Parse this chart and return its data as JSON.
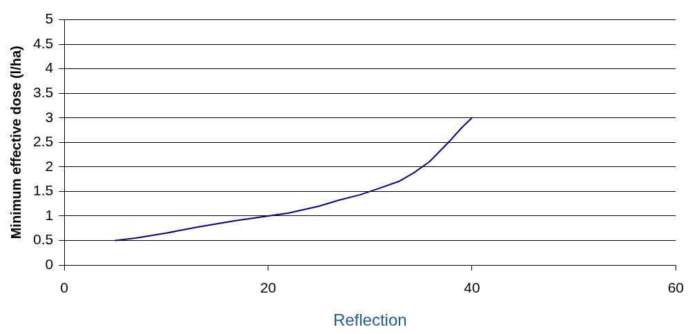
{
  "chart_data": {
    "type": "line",
    "xlabel": "Reflection",
    "ylabel": "Minimum effective dose (l/ha)",
    "series": [
      {
        "color": "#000080",
        "x": [
          5,
          7,
          10,
          13,
          16.7,
          20,
          22,
          25,
          26.9,
          29,
          31,
          32.9,
          34.3,
          35.8,
          37.7,
          39,
          40
        ],
        "values": [
          0.5,
          0.55,
          0.65,
          0.77,
          0.9,
          1.0,
          1.06,
          1.2,
          1.32,
          1.43,
          1.57,
          1.71,
          1.88,
          2.1,
          2.5,
          2.8,
          3.0
        ]
      }
    ],
    "xlim": [
      0,
      60
    ],
    "xticks": [
      0,
      20,
      40,
      60
    ],
    "ylim": [
      0,
      5
    ],
    "yticks": [
      0,
      0.5,
      1,
      1.5,
      2,
      2.5,
      3,
      3.5,
      4,
      4.5,
      5
    ],
    "grid": "y",
    "legend": false,
    "marker": "none",
    "line_style": "solid"
  }
}
